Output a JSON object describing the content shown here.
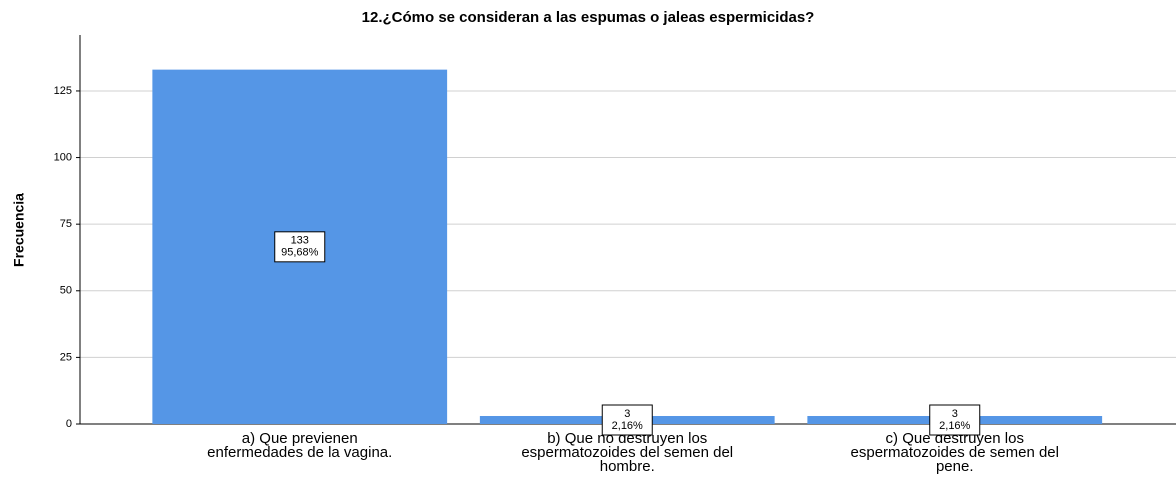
{
  "chart_data": {
    "type": "bar",
    "title": "12.¿Cómo se consideran a las espumas o jaleas espermicidas?",
    "y_label": "Frecuencia",
    "categories": [
      [
        "a) Que previenen",
        "enfermedades de la vagina."
      ],
      [
        "b) Que no destruyen los",
        "espermatozoides del semen del",
        "hombre."
      ],
      [
        "c) Que destruyen los",
        "espermatozoides de semen del",
        "pene."
      ]
    ],
    "values": [
      133,
      3,
      3
    ],
    "percent_values": [
      95.68,
      2.16,
      2.16
    ],
    "percent_labels": [
      "95,68%",
      "2,16%",
      "2,16%"
    ],
    "color": "#5596e6",
    "ylim": [
      0,
      146
    ],
    "yticks": [
      0,
      25,
      50,
      75,
      100,
      125
    ],
    "grid": true
  }
}
